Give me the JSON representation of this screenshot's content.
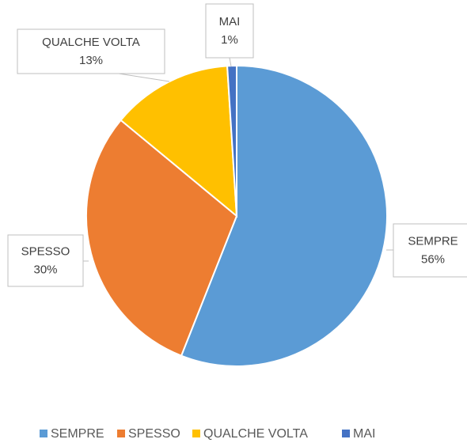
{
  "chart_data": {
    "type": "pie",
    "categories": [
      "SEMPRE",
      "SPESSO",
      "QUALCHE VOLTA",
      "MAI"
    ],
    "values": [
      56,
      30,
      13,
      1
    ],
    "value_labels": [
      "56%",
      "30%",
      "13%",
      "1%"
    ],
    "colors": [
      "#5b9bd5",
      "#ed7d31",
      "#ffc000",
      "#4472c4"
    ],
    "legend": "bottom"
  }
}
